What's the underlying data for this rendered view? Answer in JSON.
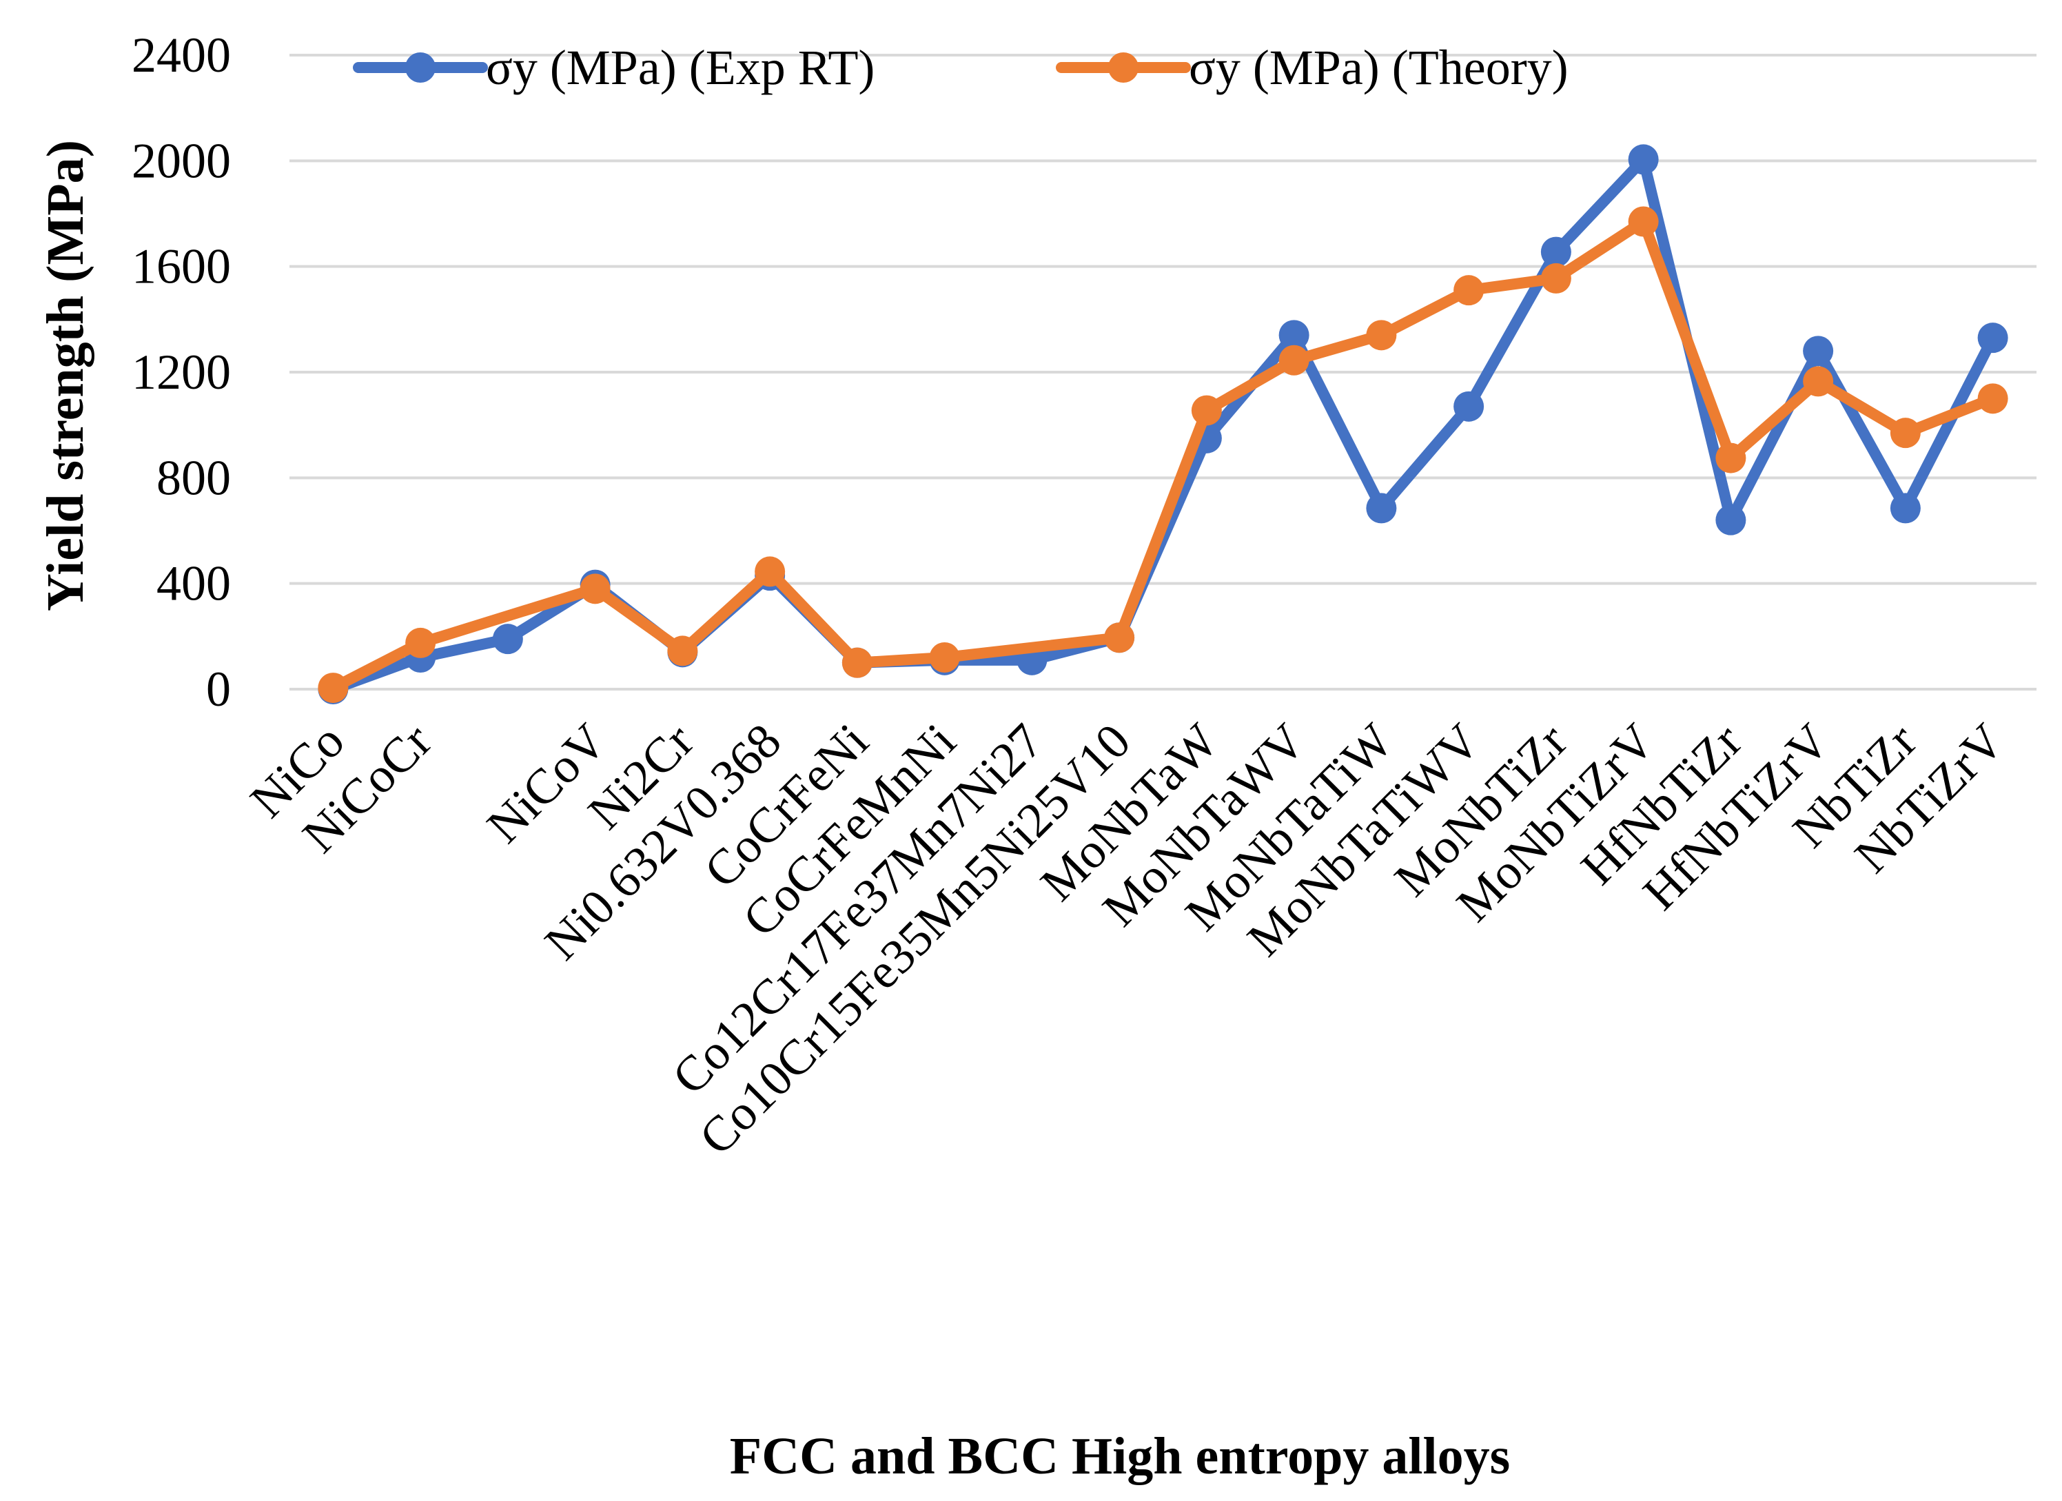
{
  "chart_data": {
    "type": "line",
    "title": "",
    "xlabel": "FCC and BCC High entropy alloys",
    "ylabel": "Yield strength (MPa)",
    "ylim": [
      0,
      2400
    ],
    "yticks": [
      0,
      400,
      800,
      1200,
      1600,
      2000,
      2400
    ],
    "ytick_labels": [
      "0",
      "400",
      "800",
      "1200",
      "1600",
      "2000",
      "2400"
    ],
    "grid": true,
    "legend_position": "top",
    "categories": [
      "NiCo",
      "NiCoCr",
      "",
      "NiCoV",
      "Ni2Cr",
      "Ni0.632V0.368",
      "CoCrFeNi",
      "CoCrFeMnNi",
      "Co12Cr17Fe37Mn7Ni27",
      "Co10Cr15Fe35Mn5Ni25V10",
      "MoNbTaW",
      "MoNbTaWV",
      "MoNbTaTiW",
      "MoNbTaTiWV",
      "MoNbTiZr",
      "MoNbTiZrV",
      "HfNbTiZr",
      "HfNbTiZrV",
      "NbTiZr",
      "NbTiZrV"
    ],
    "series": [
      {
        "name": "σy (MPa) (Exp RT)",
        "color": "#4472c4",
        "values": [
          0,
          120,
          190,
          395,
          140,
          430,
          100,
          110,
          110,
          195,
          950,
          1340,
          685,
          1070,
          1655,
          2005,
          640,
          1280,
          685,
          1330
        ]
      },
      {
        "name": "σy (MPa) (Theory)",
        "color": "#ed7d31",
        "values": [
          5,
          175,
          null,
          380,
          145,
          445,
          100,
          120,
          null,
          195,
          1055,
          1245,
          1340,
          1510,
          1555,
          1770,
          875,
          1165,
          970,
          1100
        ]
      }
    ]
  }
}
